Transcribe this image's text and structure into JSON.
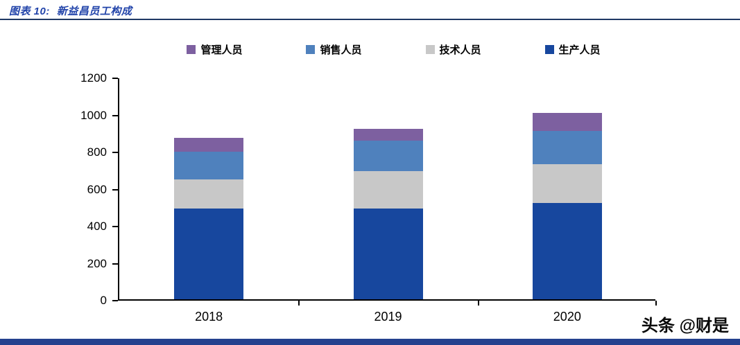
{
  "header": {
    "title_prefix": "图表 10:",
    "title_text": "新益昌员工构成"
  },
  "chart_data": {
    "type": "bar",
    "stacked": true,
    "title": "新益昌员工构成",
    "categories": [
      "2018",
      "2019",
      "2020"
    ],
    "series": [
      {
        "name": "生产人员",
        "color": "#17479E",
        "values": [
          490,
          490,
          520
        ]
      },
      {
        "name": "技术人员",
        "color": "#C8C8C8",
        "values": [
          155,
          200,
          210
        ]
      },
      {
        "name": "销售人员",
        "color": "#4F81BD",
        "values": [
          150,
          165,
          180
        ]
      },
      {
        "name": "管理人员",
        "color": "#7D60A0",
        "values": [
          75,
          65,
          95
        ]
      }
    ],
    "totals": [
      870,
      920,
      1005
    ],
    "ylim": [
      0,
      1200
    ],
    "y_ticks": [
      0,
      200,
      400,
      600,
      800,
      1000,
      1200
    ],
    "legend_position": "top",
    "legend_order": [
      "管理人员",
      "销售人员",
      "技术人员",
      "生产人员"
    ],
    "grid": false
  },
  "footer": {
    "watermark": "头条 @财是"
  },
  "colors": {
    "title_blue": "#2244AA",
    "rule_navy": "#1F3864",
    "footer_bar": "#24418E",
    "axis_black": "#000000"
  }
}
